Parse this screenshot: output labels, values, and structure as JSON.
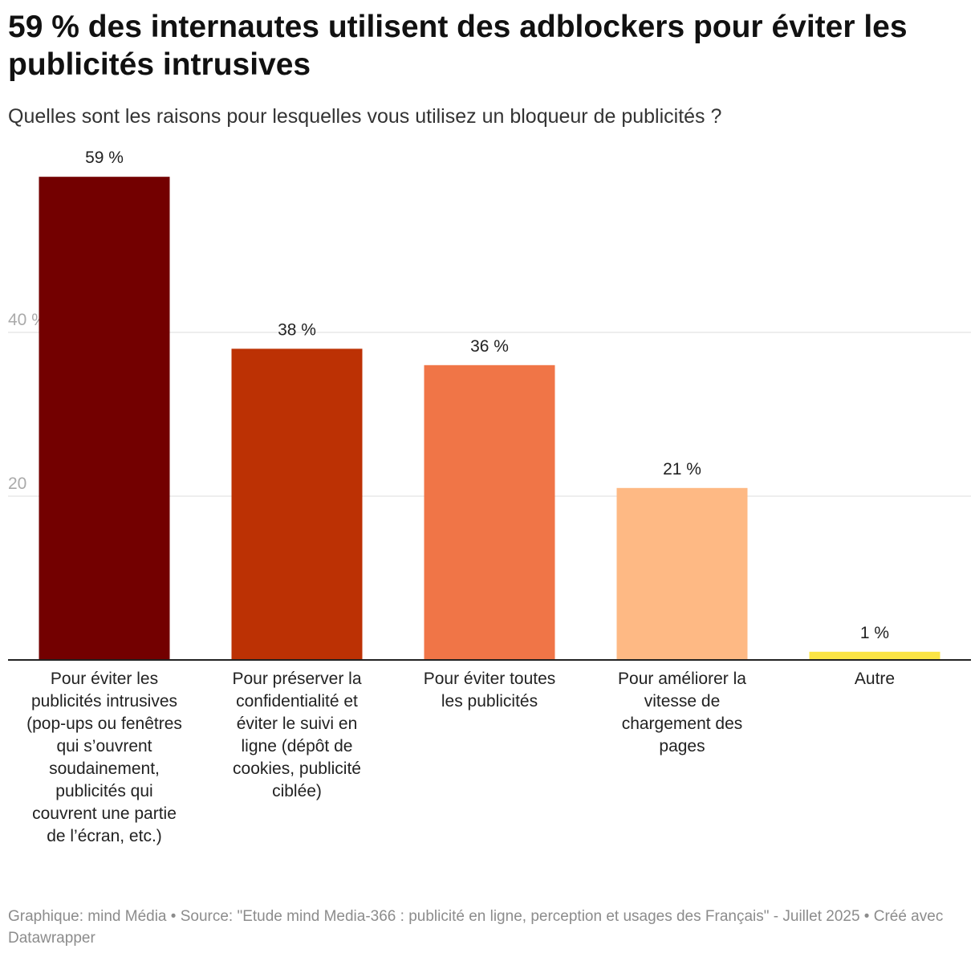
{
  "header": {
    "title": "59 % des internautes utilisent des adblockers pour éviter les publicités intrusives",
    "subtitle": "Quelles sont les raisons pour lesquelles vous utilisez un bloqueur de publicités ?"
  },
  "footer": {
    "text": "Graphique: mind Média • Source: \"Etude mind Media-366 : publicité en ligne, perception et usages des Français\" - Juillet 2025 • Créé avec Datawrapper"
  },
  "chart_data": {
    "type": "bar",
    "title": "59 % des internautes utilisent des adblockers pour éviter les publicités intrusives",
    "subtitle": "Quelles sont les raisons pour lesquelles vous utilisez un bloqueur de publicités ?",
    "categories": [
      "Pour éviter les publicités intrusives (pop-ups ou fenêtres qui s’ouvrent soudainement, publicités qui couvrent une partie de l’écran, etc.)",
      "Pour préserver la confidentialité et éviter le suivi en ligne (dépôt de cookies, publicité ciblée)",
      "Pour éviter toutes les publicités",
      "Pour améliorer la vitesse de chargement des pages",
      "Autre"
    ],
    "values": [
      59,
      38,
      36,
      21,
      1
    ],
    "value_labels": [
      "59 %",
      "38 %",
      "36 %",
      "21 %",
      "1 %"
    ],
    "colors": [
      "#730000",
      "#bc3104",
      "#f07547",
      "#feb984",
      "#fbe545"
    ],
    "yticks": [
      20,
      40
    ],
    "ytick_labels": [
      "20",
      "40 %"
    ],
    "ylim": [
      0,
      60
    ],
    "grid": true,
    "legend": "none"
  }
}
